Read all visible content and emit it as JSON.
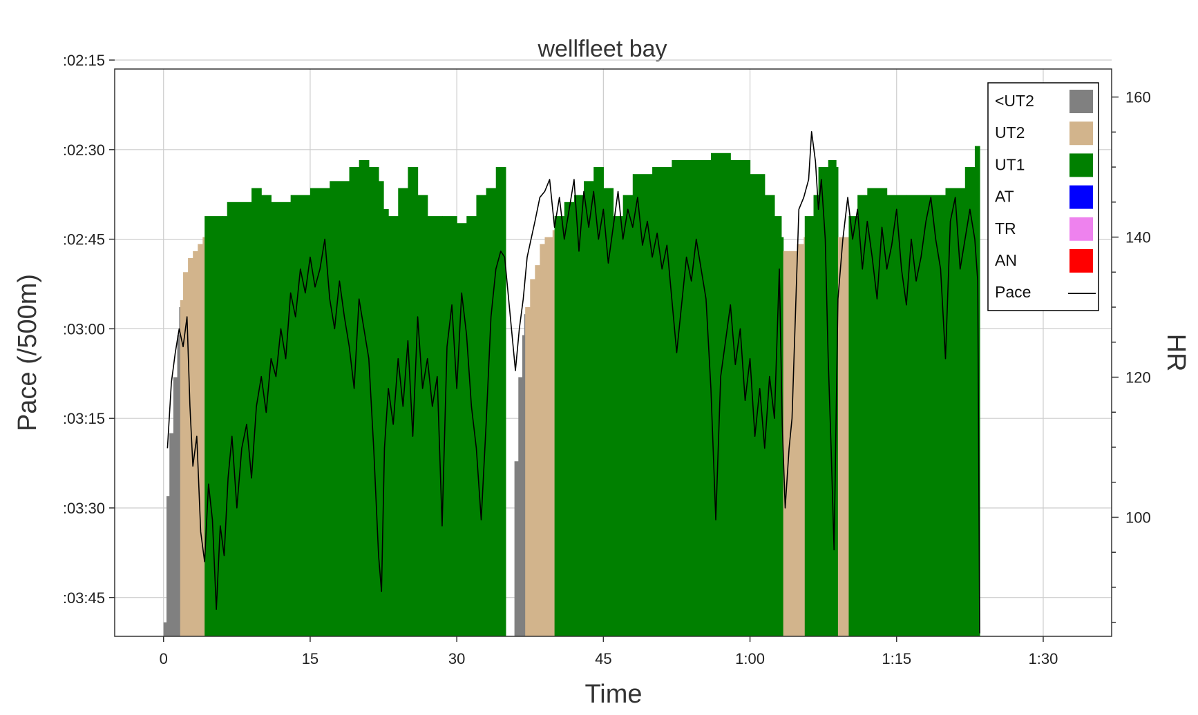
{
  "chart_data": {
    "type": "area",
    "title": "wellfleet bay",
    "xlabel": "Time",
    "ylabel": "Pace (/500m)",
    "y2label": "HR",
    "xlim": [
      -5,
      97
    ],
    "ylim_seconds": [
      231.5,
      136.5
    ],
    "y2lim": [
      83,
      164
    ],
    "x_ticks": [
      {
        "v": 0,
        "label": "0"
      },
      {
        "v": 15,
        "label": "15"
      },
      {
        "v": 30,
        "label": "30"
      },
      {
        "v": 45,
        "label": "45"
      },
      {
        "v": 60,
        "label": "1:00"
      },
      {
        "v": 75,
        "label": "1:15"
      },
      {
        "v": 90,
        "label": "1:30"
      }
    ],
    "y_ticks": [
      {
        "v": 135,
        "label": ":02:15"
      },
      {
        "v": 150,
        "label": ":02:30"
      },
      {
        "v": 165,
        "label": ":02:45"
      },
      {
        "v": 180,
        "label": ":03:00"
      },
      {
        "v": 195,
        "label": ":03:15"
      },
      {
        "v": 210,
        "label": ":03:30"
      },
      {
        "v": 225,
        "label": ":03:45"
      }
    ],
    "y2_ticks": [
      {
        "v": 100,
        "label": "100"
      },
      {
        "v": 120,
        "label": "120"
      },
      {
        "v": 140,
        "label": "140"
      },
      {
        "v": 160,
        "label": "160"
      }
    ],
    "grid": true,
    "legend_position": "top-right",
    "legend": [
      {
        "name": "<UT2",
        "color": "#808080",
        "kind": "swatch"
      },
      {
        "name": "UT2",
        "color": "#d2b48c",
        "kind": "swatch"
      },
      {
        "name": "UT1",
        "color": "#008000",
        "kind": "swatch"
      },
      {
        "name": "AT",
        "color": "#0000ff",
        "kind": "swatch"
      },
      {
        "name": "TR",
        "color": "#ee82ee",
        "kind": "swatch"
      },
      {
        "name": "AN",
        "color": "#ff0000",
        "kind": "swatch"
      },
      {
        "name": "Pace",
        "color": "#000000",
        "kind": "line"
      }
    ],
    "hr_zone_series": [
      [
        0.0,
        85,
        "<UT2"
      ],
      [
        0.3,
        103,
        "<UT2"
      ],
      [
        0.6,
        112,
        "<UT2"
      ],
      [
        1.0,
        120,
        "<UT2"
      ],
      [
        1.4,
        126,
        "<UT2"
      ],
      [
        1.6,
        130,
        "<UT2"
      ],
      [
        1.7,
        131,
        "UT2"
      ],
      [
        2.0,
        135,
        "UT2"
      ],
      [
        2.5,
        137,
        "UT2"
      ],
      [
        3.0,
        138,
        "UT2"
      ],
      [
        3.5,
        139,
        "UT2"
      ],
      [
        4.0,
        140,
        "UT2"
      ],
      [
        4.2,
        143,
        "UT1"
      ],
      [
        6.0,
        143,
        "UT1"
      ],
      [
        6.5,
        145,
        "UT1"
      ],
      [
        9.0,
        147,
        "UT1"
      ],
      [
        10.0,
        146,
        "UT1"
      ],
      [
        11.0,
        145,
        "UT1"
      ],
      [
        13.0,
        146,
        "UT1"
      ],
      [
        15.0,
        147,
        "UT1"
      ],
      [
        17.0,
        148,
        "UT1"
      ],
      [
        19.0,
        150,
        "UT1"
      ],
      [
        20.0,
        151,
        "UT1"
      ],
      [
        21.0,
        150,
        "UT1"
      ],
      [
        22.0,
        148,
        "UT1"
      ],
      [
        22.5,
        144,
        "UT1"
      ],
      [
        23.0,
        143,
        "UT1"
      ],
      [
        24.0,
        147,
        "UT1"
      ],
      [
        25.0,
        150,
        "UT1"
      ],
      [
        26.0,
        146,
        "UT1"
      ],
      [
        27.0,
        143,
        "UT1"
      ],
      [
        28.5,
        143,
        "UT1"
      ],
      [
        30.0,
        142,
        "UT1"
      ],
      [
        31.0,
        143,
        "UT1"
      ],
      [
        32.0,
        146,
        "UT1"
      ],
      [
        33.0,
        147,
        "UT1"
      ],
      [
        34.0,
        150,
        "UT1"
      ],
      [
        34.9,
        150,
        "UT1"
      ],
      [
        35.0,
        83,
        "UT1"
      ],
      [
        35.8,
        83,
        "UT1"
      ],
      [
        35.9,
        108,
        "<UT2"
      ],
      [
        36.3,
        120,
        "<UT2"
      ],
      [
        36.7,
        126,
        "<UT2"
      ],
      [
        36.9,
        129,
        "<UT2"
      ],
      [
        37.0,
        130,
        "UT2"
      ],
      [
        37.5,
        134,
        "UT2"
      ],
      [
        38.0,
        136,
        "UT2"
      ],
      [
        38.5,
        139,
        "UT2"
      ],
      [
        39.0,
        140,
        "UT2"
      ],
      [
        39.8,
        141,
        "UT2"
      ],
      [
        40.0,
        143,
        "UT1"
      ],
      [
        41.0,
        145,
        "UT1"
      ],
      [
        42.0,
        146,
        "UT1"
      ],
      [
        43.0,
        148,
        "UT1"
      ],
      [
        44.0,
        150,
        "UT1"
      ],
      [
        45.0,
        147,
        "UT1"
      ],
      [
        46.0,
        143,
        "UT1"
      ],
      [
        47.0,
        146,
        "UT1"
      ],
      [
        48.0,
        149,
        "UT1"
      ],
      [
        50.0,
        150,
        "UT1"
      ],
      [
        52.0,
        151,
        "UT1"
      ],
      [
        54.0,
        151,
        "UT1"
      ],
      [
        56.0,
        152,
        "UT1"
      ],
      [
        58.0,
        151,
        "UT1"
      ],
      [
        60.0,
        149,
        "UT1"
      ],
      [
        61.5,
        146,
        "UT1"
      ],
      [
        62.5,
        143,
        "UT1"
      ],
      [
        63.2,
        140,
        "UT1"
      ],
      [
        63.4,
        138,
        "UT2"
      ],
      [
        64.0,
        138,
        "UT2"
      ],
      [
        64.8,
        139,
        "UT2"
      ],
      [
        65.5,
        140,
        "UT2"
      ],
      [
        65.6,
        143,
        "UT1"
      ],
      [
        66.5,
        146,
        "UT1"
      ],
      [
        67.0,
        150,
        "UT1"
      ],
      [
        68.0,
        151,
        "UT1"
      ],
      [
        68.8,
        150,
        "UT1"
      ],
      [
        69.0,
        140,
        "UT2"
      ],
      [
        70.0,
        140,
        "UT2"
      ],
      [
        70.1,
        143,
        "UT1"
      ],
      [
        71.0,
        146,
        "UT1"
      ],
      [
        72.0,
        147,
        "UT1"
      ],
      [
        74.0,
        146,
        "UT1"
      ],
      [
        76.0,
        146,
        "UT1"
      ],
      [
        78.0,
        146,
        "UT1"
      ],
      [
        80.0,
        147,
        "UT1"
      ],
      [
        82.0,
        150,
        "UT1"
      ],
      [
        83.0,
        153,
        "UT1"
      ],
      [
        83.4,
        153,
        "UT1"
      ],
      [
        83.5,
        83,
        "UT1"
      ]
    ],
    "pace_series": [
      [
        0.4,
        200
      ],
      [
        0.8,
        189
      ],
      [
        1.2,
        184
      ],
      [
        1.6,
        180
      ],
      [
        2.0,
        183
      ],
      [
        2.4,
        178
      ],
      [
        2.7,
        193
      ],
      [
        3.0,
        203
      ],
      [
        3.4,
        198
      ],
      [
        3.8,
        214
      ],
      [
        4.2,
        219
      ],
      [
        4.6,
        206
      ],
      [
        5.0,
        212
      ],
      [
        5.4,
        227
      ],
      [
        5.8,
        213
      ],
      [
        6.2,
        218
      ],
      [
        6.6,
        205
      ],
      [
        7.0,
        198
      ],
      [
        7.5,
        210
      ],
      [
        8.0,
        200
      ],
      [
        8.5,
        196
      ],
      [
        9.0,
        205
      ],
      [
        9.5,
        193
      ],
      [
        10.0,
        188
      ],
      [
        10.5,
        194
      ],
      [
        11.0,
        185
      ],
      [
        11.5,
        188
      ],
      [
        12.0,
        180
      ],
      [
        12.5,
        185
      ],
      [
        13.0,
        174
      ],
      [
        13.5,
        178
      ],
      [
        14.0,
        170
      ],
      [
        14.5,
        174
      ],
      [
        15.0,
        168
      ],
      [
        15.5,
        173
      ],
      [
        16.0,
        170
      ],
      [
        16.5,
        165
      ],
      [
        17.0,
        175
      ],
      [
        17.5,
        180
      ],
      [
        18.0,
        172
      ],
      [
        18.5,
        178
      ],
      [
        19.0,
        183
      ],
      [
        19.5,
        190
      ],
      [
        20.0,
        175
      ],
      [
        20.5,
        180
      ],
      [
        21.0,
        185
      ],
      [
        21.5,
        200
      ],
      [
        22.0,
        218
      ],
      [
        22.3,
        224
      ],
      [
        22.6,
        200
      ],
      [
        23.0,
        190
      ],
      [
        23.5,
        196
      ],
      [
        24.0,
        185
      ],
      [
        24.5,
        193
      ],
      [
        25.0,
        182
      ],
      [
        25.5,
        198
      ],
      [
        26.0,
        178
      ],
      [
        26.5,
        190
      ],
      [
        27.0,
        185
      ],
      [
        27.5,
        193
      ],
      [
        28.0,
        188
      ],
      [
        28.5,
        213
      ],
      [
        29.0,
        183
      ],
      [
        29.5,
        176
      ],
      [
        30.0,
        190
      ],
      [
        30.5,
        174
      ],
      [
        31.0,
        181
      ],
      [
        31.5,
        193
      ],
      [
        32.0,
        200
      ],
      [
        32.5,
        212
      ],
      [
        33.0,
        196
      ],
      [
        33.5,
        178
      ],
      [
        34.0,
        170
      ],
      [
        34.5,
        167
      ],
      [
        34.9,
        168
      ],
      [
        36.0,
        187
      ],
      [
        36.4,
        180
      ],
      [
        36.8,
        175
      ],
      [
        37.2,
        168
      ],
      [
        37.6,
        165
      ],
      [
        38.0,
        162
      ],
      [
        38.5,
        158
      ],
      [
        39.0,
        157
      ],
      [
        39.5,
        155
      ],
      [
        40.0,
        163
      ],
      [
        40.5,
        158
      ],
      [
        41.0,
        165
      ],
      [
        41.5,
        160
      ],
      [
        42.0,
        155
      ],
      [
        42.5,
        167
      ],
      [
        43.0,
        157
      ],
      [
        43.5,
        163
      ],
      [
        44.0,
        157
      ],
      [
        44.5,
        165
      ],
      [
        45.0,
        160
      ],
      [
        45.5,
        169
      ],
      [
        46.0,
        163
      ],
      [
        46.5,
        157
      ],
      [
        47.0,
        165
      ],
      [
        47.5,
        160
      ],
      [
        48.0,
        163
      ],
      [
        48.5,
        158
      ],
      [
        49.0,
        166
      ],
      [
        49.5,
        162
      ],
      [
        50.0,
        168
      ],
      [
        50.5,
        164
      ],
      [
        51.0,
        170
      ],
      [
        51.5,
        166
      ],
      [
        52.0,
        175
      ],
      [
        52.5,
        184
      ],
      [
        53.0,
        176
      ],
      [
        53.5,
        168
      ],
      [
        54.0,
        172
      ],
      [
        54.5,
        165
      ],
      [
        55.0,
        170
      ],
      [
        55.5,
        175
      ],
      [
        56.0,
        190
      ],
      [
        56.5,
        212
      ],
      [
        57.0,
        188
      ],
      [
        57.5,
        182
      ],
      [
        58.0,
        176
      ],
      [
        58.5,
        186
      ],
      [
        59.0,
        180
      ],
      [
        59.5,
        192
      ],
      [
        60.0,
        185
      ],
      [
        60.5,
        198
      ],
      [
        61.0,
        190
      ],
      [
        61.5,
        200
      ],
      [
        62.0,
        188
      ],
      [
        62.5,
        195
      ],
      [
        63.0,
        170
      ],
      [
        63.3,
        196
      ],
      [
        63.6,
        210
      ],
      [
        64.0,
        200
      ],
      [
        64.3,
        195
      ],
      [
        64.6,
        180
      ],
      [
        65.0,
        160
      ],
      [
        65.5,
        158
      ],
      [
        66.0,
        155
      ],
      [
        66.3,
        147
      ],
      [
        66.7,
        152
      ],
      [
        67.0,
        160
      ],
      [
        67.3,
        155
      ],
      [
        67.7,
        165
      ],
      [
        68.0,
        185
      ],
      [
        68.3,
        200
      ],
      [
        68.6,
        217
      ],
      [
        69.0,
        175
      ],
      [
        69.5,
        165
      ],
      [
        70.0,
        158
      ],
      [
        70.5,
        165
      ],
      [
        71.0,
        160
      ],
      [
        71.5,
        170
      ],
      [
        72.0,
        162
      ],
      [
        72.5,
        168
      ],
      [
        73.0,
        175
      ],
      [
        73.5,
        163
      ],
      [
        74.0,
        170
      ],
      [
        74.5,
        166
      ],
      [
        75.0,
        160
      ],
      [
        75.5,
        170
      ],
      [
        76.0,
        176
      ],
      [
        76.5,
        165
      ],
      [
        77.0,
        172
      ],
      [
        77.5,
        168
      ],
      [
        78.0,
        162
      ],
      [
        78.5,
        158
      ],
      [
        79.0,
        165
      ],
      [
        79.5,
        170
      ],
      [
        80.0,
        185
      ],
      [
        80.5,
        162
      ],
      [
        81.0,
        158
      ],
      [
        81.5,
        170
      ],
      [
        82.0,
        165
      ],
      [
        82.5,
        160
      ],
      [
        83.0,
        165
      ],
      [
        83.3,
        172
      ],
      [
        83.5,
        231
      ]
    ]
  }
}
